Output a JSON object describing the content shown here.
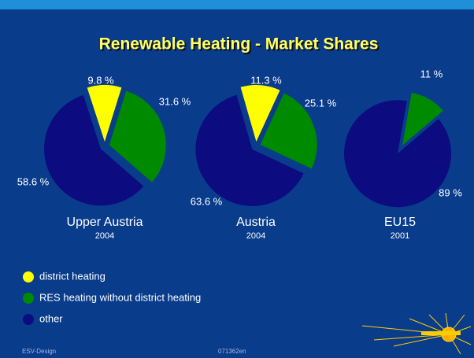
{
  "title": "Renewable Heating - Market Shares",
  "legend": [
    {
      "name": "district heating",
      "color": "#ffff00"
    },
    {
      "name": "RES heating without district heating",
      "color": "#008a00"
    },
    {
      "name": "other",
      "color": "#0c0c80"
    }
  ],
  "chart_data": [
    {
      "type": "pie",
      "title": "Upper Austria",
      "subtitle": "2004",
      "values": [
        9.8,
        31.6,
        58.6
      ],
      "value_labels": [
        "9.8 %",
        "31.6 %",
        "58.6 %"
      ],
      "colors": [
        "#ffff00",
        "#008a00",
        "#0c0c80"
      ]
    },
    {
      "type": "pie",
      "title": "Austria",
      "subtitle": "2004",
      "values": [
        11.3,
        25.1,
        63.6
      ],
      "value_labels": [
        "11.3 %",
        "25.1 %",
        "63.6 %"
      ],
      "colors": [
        "#ffff00",
        "#008a00",
        "#0c0c80"
      ]
    },
    {
      "type": "pie",
      "title": "EU15",
      "subtitle": "2001",
      "values": [
        11,
        89
      ],
      "value_labels": [
        "11 %",
        "89 %"
      ],
      "colors": [
        "#008a00",
        "#0c0c80"
      ]
    }
  ],
  "footer": {
    "left": "ESV-Design",
    "center": "071362en"
  }
}
